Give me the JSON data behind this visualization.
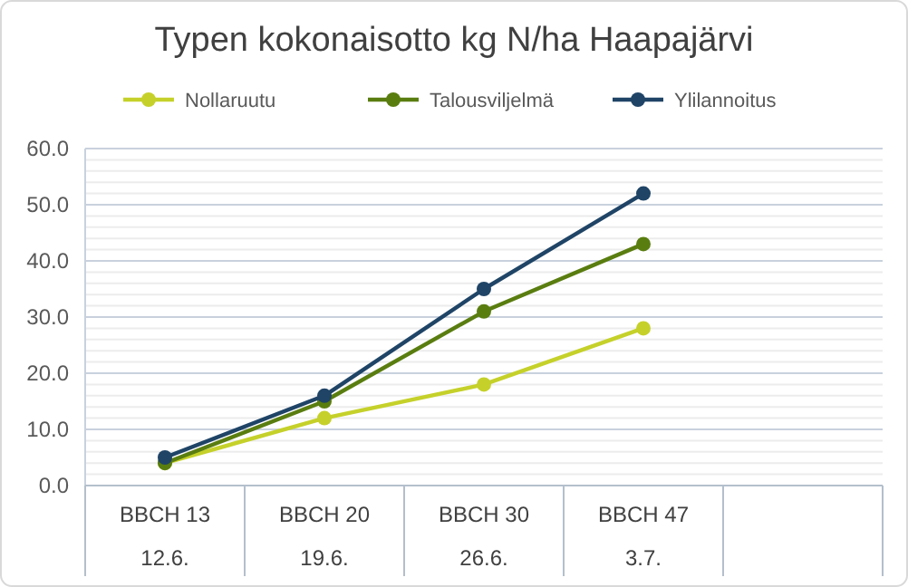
{
  "chart_data": {
    "type": "line",
    "title": "Typen kokonaisotto kg N/ha Haapajärvi",
    "categories": [
      "BBCH 13\n12.6.",
      "BBCH 20\n19.6.",
      "BBCH 30\n26.6.",
      "BBCH 47\n3.7.",
      null
    ],
    "series": [
      {
        "name": "Nollaruutu",
        "color": "#c5d12a",
        "values": [
          4,
          12,
          18,
          28,
          null
        ]
      },
      {
        "name": "Talousviljelmä",
        "color": "#5a7d10",
        "values": [
          4,
          15,
          31,
          43,
          null
        ]
      },
      {
        "name": "Ylilannoitus",
        "color": "#1f4466",
        "values": [
          5,
          16,
          35,
          52,
          null
        ]
      }
    ],
    "ylim": [
      0,
      60
    ],
    "yticks": [
      {
        "value": 0,
        "label": "0.0"
      },
      {
        "value": 2,
        "label": null
      },
      {
        "value": 4,
        "label": null
      },
      {
        "value": 6,
        "label": null
      },
      {
        "value": 8,
        "label": null
      },
      {
        "value": 10,
        "label": "10.0"
      },
      {
        "value": 12,
        "label": null
      },
      {
        "value": 14,
        "label": null
      },
      {
        "value": 16,
        "label": null
      },
      {
        "value": 18,
        "label": null
      },
      {
        "value": 20,
        "label": "20.0"
      },
      {
        "value": 22,
        "label": null
      },
      {
        "value": 24,
        "label": null
      },
      {
        "value": 26,
        "label": null
      },
      {
        "value": 28,
        "label": null
      },
      {
        "value": 30,
        "label": "30.0"
      },
      {
        "value": 32,
        "label": null
      },
      {
        "value": 34,
        "label": null
      },
      {
        "value": 36,
        "label": null
      },
      {
        "value": 38,
        "label": null
      },
      {
        "value": 40,
        "label": "40.0"
      },
      {
        "value": 42,
        "label": null
      },
      {
        "value": 44,
        "label": null
      },
      {
        "value": 46,
        "label": null
      },
      {
        "value": 48,
        "label": null
      },
      {
        "value": 50,
        "label": "50.0"
      },
      {
        "value": 52,
        "label": null
      },
      {
        "value": 54,
        "label": null
      },
      {
        "value": 56,
        "label": null
      },
      {
        "value": 58,
        "label": null
      },
      {
        "value": 60,
        "label": "60.0"
      }
    ],
    "grid": "y",
    "legend": "top",
    "marker": "circle",
    "line_style": "solid"
  }
}
